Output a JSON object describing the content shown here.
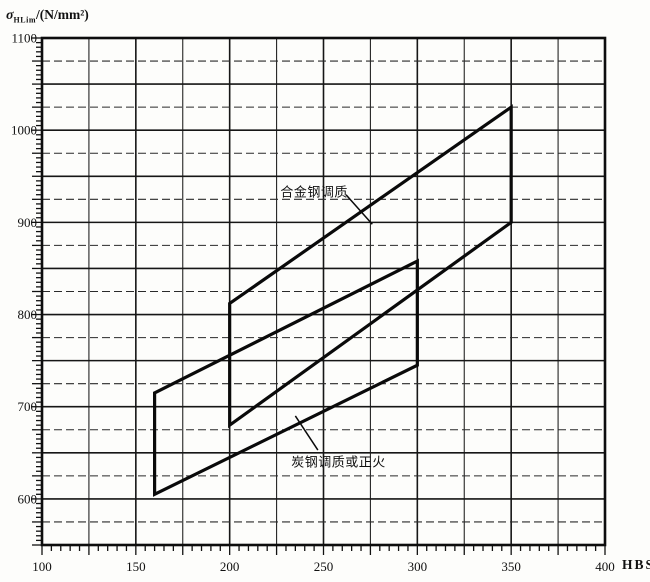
{
  "ink_color": "#111111",
  "background_color": "#fdfdfb",
  "axis_titles": {
    "y_sigma": "σ",
    "y_sub": "HLim",
    "y_rest": "/(N/mm²)",
    "x": "HBS"
  },
  "chart_data": {
    "type": "area",
    "title": "",
    "xlabel": "HBS",
    "ylabel": "σHLim/(N/mm²)",
    "x_range": [
      100,
      400
    ],
    "y_range": [
      550,
      1100
    ],
    "grid_step": 25,
    "tick_step_minor": 5,
    "tick_step_medium": 25,
    "grid_on": true,
    "legend_position": "none",
    "x_tick_labels": [
      "100",
      "150",
      "200",
      "250",
      "300",
      "350",
      "400"
    ],
    "y_tick_labels": [
      "1100",
      "1000",
      "900",
      "800",
      "700",
      "600"
    ],
    "series": [
      {
        "name": "合金钢调质",
        "shape": "parallelogram-band",
        "vertices_hbs_sigma": [
          [
            200,
            812
          ],
          [
            350,
            1025
          ],
          [
            350,
            900
          ],
          [
            200,
            680
          ]
        ]
      },
      {
        "name": "炭钢调质或正火",
        "shape": "parallelogram-band",
        "vertices_hbs_sigma": [
          [
            160,
            715
          ],
          [
            300,
            858
          ],
          [
            300,
            745
          ],
          [
            160,
            605
          ]
        ]
      }
    ],
    "annotations": [
      {
        "text": "合金钢调质",
        "x": 245,
        "y": 933,
        "leader": [
          [
            262,
            930
          ],
          [
            276,
            898
          ]
        ]
      },
      {
        "text": "炭钢调质或正火",
        "x": 258,
        "y": 640,
        "leader": [
          [
            235,
            690
          ],
          [
            247,
            653
          ]
        ]
      }
    ]
  }
}
